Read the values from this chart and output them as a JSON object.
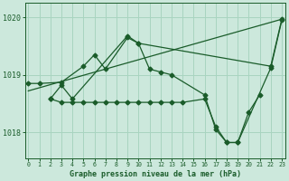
{
  "background_color": "#cce8dc",
  "grid_color": "#a8d4c0",
  "line_color": "#1a5c2a",
  "title": "Graphe pression niveau de la mer (hPa)",
  "ylabel_ticks": [
    1018,
    1019,
    1020
  ],
  "xlim": [
    -0.3,
    23.3
  ],
  "ylim": [
    1017.55,
    1020.25
  ],
  "series": [
    {
      "x": [
        0,
        23
      ],
      "y": [
        1018.72,
        1019.97
      ],
      "has_markers": false
    },
    {
      "x": [
        0,
        1,
        3,
        5,
        6,
        7,
        9,
        10,
        22,
        23
      ],
      "y": [
        1018.85,
        1018.85,
        1018.87,
        1019.15,
        1019.35,
        1019.1,
        1019.65,
        1019.55,
        1019.15,
        1019.97
      ],
      "has_markers": true
    },
    {
      "x": [
        2,
        3,
        4,
        9,
        10,
        11,
        12,
        13,
        16,
        17,
        18,
        19,
        22,
        23
      ],
      "y": [
        1018.58,
        1018.82,
        1018.58,
        1019.68,
        1019.55,
        1019.1,
        1019.05,
        1019.0,
        1018.65,
        1018.05,
        1017.82,
        1017.82,
        1019.12,
        1019.95
      ],
      "has_markers": true
    },
    {
      "x": [
        2,
        3,
        4,
        5,
        6,
        7,
        8,
        9,
        10,
        11,
        12,
        13,
        14,
        16,
        17,
        18,
        19,
        20,
        21
      ],
      "y": [
        1018.58,
        1018.52,
        1018.52,
        1018.52,
        1018.52,
        1018.52,
        1018.52,
        1018.52,
        1018.52,
        1018.52,
        1018.52,
        1018.52,
        1018.52,
        1018.58,
        1018.1,
        1017.82,
        1017.82,
        1018.35,
        1018.65
      ],
      "has_markers": true
    }
  ]
}
